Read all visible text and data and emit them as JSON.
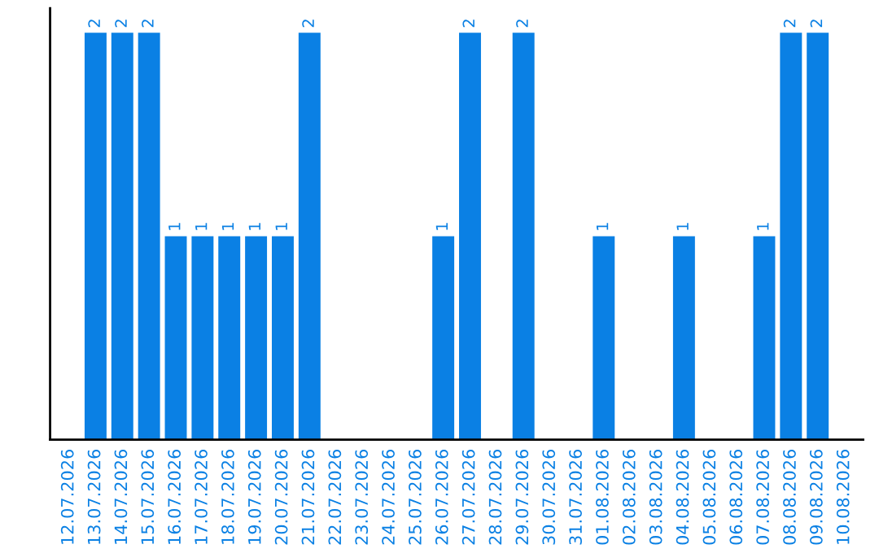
{
  "chart_data": {
    "type": "bar",
    "categories": [
      "12.07.2026",
      "13.07.2026",
      "14.07.2026",
      "15.07.2026",
      "16.07.2026",
      "17.07.2026",
      "18.07.2026",
      "19.07.2026",
      "20.07.2026",
      "21.07.2026",
      "22.07.2026",
      "23.07.2026",
      "24.07.2026",
      "25.07.2026",
      "26.07.2026",
      "27.07.2026",
      "28.07.2026",
      "29.07.2026",
      "30.07.2026",
      "31.07.2026",
      "01.08.2026",
      "02.08.2026",
      "03.08.2026",
      "04.08.2026",
      "05.08.2026",
      "06.08.2026",
      "07.08.2026",
      "08.08.2026",
      "09.08.2026",
      "10.08.2026"
    ],
    "values": [
      null,
      2,
      2,
      2,
      1,
      1,
      1,
      1,
      1,
      2,
      null,
      null,
      null,
      null,
      1,
      2,
      null,
      2,
      null,
      null,
      1,
      null,
      null,
      1,
      null,
      null,
      1,
      2,
      2,
      null
    ],
    "value_labels": [
      null,
      "2",
      "2",
      "2",
      "1",
      "1",
      "1",
      "1",
      "1",
      "2",
      null,
      null,
      null,
      null,
      "1",
      "2",
      null,
      "2",
      null,
      null,
      "1",
      null,
      null,
      "1",
      null,
      null,
      "1",
      "2",
      "2",
      null
    ],
    "color": "#0a80e4",
    "tick_labels": "x",
    "grid": false,
    "legend": false
  }
}
